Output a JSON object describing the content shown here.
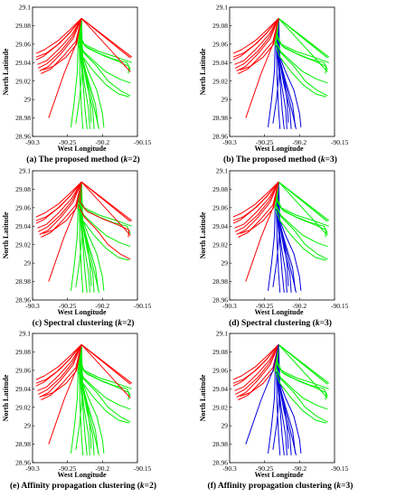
{
  "colors": {
    "red": "#ff0000",
    "green": "#00ee00",
    "blue": "#0000dd"
  },
  "chart_data": [
    {
      "type": "line",
      "caption": "(a) The proposed method (k=2)",
      "caption_parts": [
        "(a) The proposed method (",
        "k",
        "=2)"
      ],
      "xlabel": "West Longitude",
      "ylabel": "North Latitude",
      "xlim": [
        -90.3,
        -90.15
      ],
      "ylim": [
        28.96,
        29.1
      ],
      "xticks": [
        "-90.3",
        "-90.25",
        "-90.2",
        "-90.15"
      ],
      "yticks": [
        "28.96",
        "28.98",
        "29",
        "29.02",
        "29.04",
        "29.06",
        "29.08",
        "29.1"
      ],
      "clusters": {
        "west": "red",
        "east": "green",
        "south": "green",
        "diagonal": "red",
        "sw": "red"
      }
    },
    {
      "type": "line",
      "caption": "(b) The proposed method (k=3)",
      "caption_parts": [
        "(b) The proposed method (",
        "k",
        "=3)"
      ],
      "xlabel": "West Longitude",
      "ylabel": "North Latitude",
      "xlim": [
        -90.3,
        -90.15
      ],
      "ylim": [
        28.96,
        29.1
      ],
      "xticks": [
        "-90.3",
        "-90.25",
        "-90.2",
        "-90.15"
      ],
      "yticks": [
        "28.96",
        "28.98",
        "29",
        "29.02",
        "29.04",
        "29.06",
        "29.08",
        "29.1"
      ],
      "clusters": {
        "west": "red",
        "east": "green",
        "south": "blue",
        "diagonal": "green",
        "sw": "red"
      }
    },
    {
      "type": "line",
      "caption": "(c) Spectral clustering (k=2)",
      "caption_parts": [
        "(c) Spectral clustering (",
        "k",
        "=2)"
      ],
      "xlabel": "West Longitude",
      "ylabel": "North Latitude",
      "xlim": [
        -90.3,
        -90.15
      ],
      "ylim": [
        28.96,
        29.1
      ],
      "xticks": [
        "-90.3",
        "-90.25",
        "-90.2",
        "-90.15"
      ],
      "yticks": [
        "28.96",
        "28.98",
        "29",
        "29.02",
        "29.04",
        "29.06",
        "29.08",
        "29.1"
      ],
      "clusters": {
        "west": "red",
        "east": "mixed",
        "south": "green",
        "diagonal": "red",
        "sw": "red"
      }
    },
    {
      "type": "line",
      "caption": "(d) Spectral clustering (k=3)",
      "caption_parts": [
        "(d) Spectral clustering (",
        "k",
        "=3)"
      ],
      "xlabel": "West Longitude",
      "ylabel": "North Latitude",
      "xlim": [
        -90.3,
        -90.15
      ],
      "ylim": [
        28.96,
        29.1
      ],
      "xticks": [
        "-90.3",
        "-90.25",
        "-90.2",
        "-90.15"
      ],
      "yticks": [
        "28.96",
        "28.98",
        "29",
        "29.02",
        "29.04",
        "29.06",
        "29.08",
        "29.1"
      ],
      "clusters": {
        "west": "red",
        "east": "green",
        "south": "blue",
        "diagonal": "green",
        "sw": "red"
      }
    },
    {
      "type": "line",
      "caption": "(e) Affinity propagation clustering (k=2)",
      "caption_parts": [
        "(e) Affinity propagation clustering (",
        "k",
        "=2)"
      ],
      "xlabel": "West Longitude",
      "ylabel": "North Latitude",
      "xlim": [
        -90.3,
        -90.15
      ],
      "ylim": [
        28.96,
        29.1
      ],
      "xticks": [
        "-90.3",
        "-90.25",
        "-90.2",
        "-90.15"
      ],
      "yticks": [
        "28.96",
        "28.98",
        "29",
        "29.02",
        "29.04",
        "29.06",
        "29.08",
        "29.1"
      ],
      "clusters": {
        "west": "red",
        "east": "green",
        "south": "green",
        "diagonal": "red",
        "sw": "red"
      }
    },
    {
      "type": "line",
      "caption": "(f) Affinity propagation clustering (k=3)",
      "caption_parts": [
        "(f) Affinity propagation clustering (",
        "k",
        "=3)"
      ],
      "xlabel": "West Longitude",
      "ylabel": "North Latitude",
      "xlim": [
        -90.3,
        -90.15
      ],
      "ylim": [
        28.96,
        29.1
      ],
      "xticks": [
        "-90.3",
        "-90.25",
        "-90.2",
        "-90.15"
      ],
      "yticks": [
        "28.96",
        "28.98",
        "29",
        "29.02",
        "29.04",
        "29.06",
        "29.08",
        "29.1"
      ],
      "clusters": {
        "west": "red",
        "east": "green",
        "south": "blue",
        "diagonal": "green",
        "sw": "blue"
      }
    }
  ],
  "trajectories": {
    "west": [
      [
        [
          -90.23,
          29.088
        ],
        [
          -90.246,
          29.076
        ],
        [
          -90.263,
          29.064
        ],
        [
          -90.283,
          29.054
        ],
        [
          -90.295,
          29.05
        ]
      ],
      [
        [
          -90.23,
          29.088
        ],
        [
          -90.245,
          29.074
        ],
        [
          -90.261,
          29.061
        ],
        [
          -90.281,
          29.05
        ],
        [
          -90.295,
          29.046
        ]
      ],
      [
        [
          -90.23,
          29.088
        ],
        [
          -90.247,
          29.072
        ],
        [
          -90.266,
          29.058
        ],
        [
          -90.284,
          29.047
        ],
        [
          -90.295,
          29.043
        ]
      ],
      [
        [
          -90.23,
          29.088
        ],
        [
          -90.244,
          29.07
        ],
        [
          -90.262,
          29.055
        ],
        [
          -90.28,
          29.042
        ],
        [
          -90.293,
          29.038
        ]
      ],
      [
        [
          -90.23,
          29.088
        ],
        [
          -90.243,
          29.068
        ],
        [
          -90.26,
          29.052
        ],
        [
          -90.279,
          29.039
        ],
        [
          -90.292,
          29.034
        ]
      ],
      [
        [
          -90.23,
          29.088
        ],
        [
          -90.242,
          29.066
        ],
        [
          -90.259,
          29.05
        ],
        [
          -90.277,
          29.036
        ],
        [
          -90.29,
          29.031
        ]
      ],
      [
        [
          -90.23,
          29.088
        ],
        [
          -90.238,
          29.063
        ],
        [
          -90.256,
          29.047
        ],
        [
          -90.274,
          29.033
        ],
        [
          -90.288,
          29.028
        ]
      ],
      [
        [
          -90.23,
          29.088
        ],
        [
          -90.237,
          29.06
        ],
        [
          -90.252,
          29.046
        ],
        [
          -90.27,
          29.036
        ],
        [
          -90.285,
          29.032
        ]
      ]
    ],
    "sw": [
      [
        [
          -90.23,
          29.088
        ],
        [
          -90.238,
          29.06
        ],
        [
          -90.255,
          29.028
        ],
        [
          -90.277,
          28.98
        ]
      ]
    ],
    "diagonal": [
      [
        [
          -90.23,
          29.088
        ],
        [
          -90.16,
          29.045
        ]
      ],
      [
        [
          -90.23,
          29.088
        ],
        [
          -90.16,
          29.03
        ]
      ],
      [
        [
          -90.23,
          29.088
        ],
        [
          -90.158,
          29.046
        ]
      ]
    ],
    "east": [
      [
        [
          -90.23,
          29.088
        ],
        [
          -90.232,
          29.07
        ],
        [
          -90.226,
          29.06
        ],
        [
          -90.205,
          29.052
        ],
        [
          -90.18,
          29.046
        ],
        [
          -90.158,
          29.04
        ]
      ],
      [
        [
          -90.23,
          29.088
        ],
        [
          -90.233,
          29.068
        ],
        [
          -90.225,
          29.058
        ],
        [
          -90.205,
          29.05
        ],
        [
          -90.185,
          29.044
        ],
        [
          -90.165,
          29.04
        ],
        [
          -90.16,
          29.032
        ]
      ],
      [
        [
          -90.23,
          29.088
        ],
        [
          -90.232,
          29.066
        ],
        [
          -90.222,
          29.056
        ],
        [
          -90.2,
          29.048
        ],
        [
          -90.18,
          29.042
        ],
        [
          -90.162,
          29.036
        ],
        [
          -90.163,
          29.028
        ]
      ],
      [
        [
          -90.23,
          29.088
        ],
        [
          -90.234,
          29.064
        ],
        [
          -90.227,
          29.052
        ],
        [
          -90.21,
          29.04
        ],
        [
          -90.195,
          29.03
        ],
        [
          -90.175,
          29.022
        ],
        [
          -90.16,
          29.018
        ]
      ],
      [
        [
          -90.23,
          29.088
        ],
        [
          -90.234,
          29.062
        ],
        [
          -90.226,
          29.05
        ],
        [
          -90.208,
          29.036
        ],
        [
          -90.192,
          29.02
        ],
        [
          -90.175,
          29.01
        ],
        [
          -90.16,
          29.004
        ]
      ],
      [
        [
          -90.23,
          29.088
        ],
        [
          -90.235,
          29.06
        ],
        [
          -90.228,
          29.046
        ],
        [
          -90.212,
          29.03
        ],
        [
          -90.195,
          29.016
        ],
        [
          -90.177,
          29.006
        ],
        [
          -90.162,
          29.003
        ]
      ]
    ],
    "south": [
      [
        [
          -90.23,
          29.088
        ],
        [
          -90.235,
          29.06
        ],
        [
          -90.236,
          29.03
        ],
        [
          -90.24,
          29.0
        ],
        [
          -90.245,
          28.97
        ]
      ],
      [
        [
          -90.23,
          29.088
        ],
        [
          -90.233,
          29.055
        ],
        [
          -90.232,
          29.02
        ],
        [
          -90.23,
          28.99
        ],
        [
          -90.228,
          28.968
        ]
      ],
      [
        [
          -90.23,
          29.088
        ],
        [
          -90.232,
          29.05
        ],
        [
          -90.228,
          29.02
        ],
        [
          -90.225,
          28.99
        ],
        [
          -90.222,
          28.968
        ]
      ],
      [
        [
          -90.23,
          29.088
        ],
        [
          -90.231,
          29.05
        ],
        [
          -90.226,
          29.018
        ],
        [
          -90.22,
          28.99
        ],
        [
          -90.218,
          28.968
        ]
      ],
      [
        [
          -90.23,
          29.088
        ],
        [
          -90.23,
          29.048
        ],
        [
          -90.222,
          29.015
        ],
        [
          -90.214,
          28.99
        ],
        [
          -90.212,
          28.968
        ]
      ],
      [
        [
          -90.23,
          29.088
        ],
        [
          -90.229,
          29.045
        ],
        [
          -90.22,
          29.02
        ],
        [
          -90.21,
          28.995
        ],
        [
          -90.206,
          28.97
        ]
      ],
      [
        [
          -90.23,
          29.088
        ],
        [
          -90.228,
          29.04
        ],
        [
          -90.218,
          29.01
        ],
        [
          -90.21,
          28.985
        ],
        [
          -90.205,
          28.968
        ]
      ],
      [
        [
          -90.23,
          29.088
        ],
        [
          -90.232,
          29.058
        ],
        [
          -90.229,
          29.03
        ],
        [
          -90.233,
          29.0
        ],
        [
          -90.238,
          28.974
        ]
      ],
      [
        [
          -90.23,
          29.088
        ],
        [
          -90.231,
          29.052
        ],
        [
          -90.224,
          29.03
        ],
        [
          -90.218,
          29.0
        ],
        [
          -90.216,
          28.975
        ]
      ],
      [
        [
          -90.23,
          29.088
        ],
        [
          -90.23,
          29.05
        ],
        [
          -90.22,
          29.03
        ],
        [
          -90.208,
          29.01
        ],
        [
          -90.2,
          28.985
        ],
        [
          -90.198,
          28.97
        ]
      ]
    ]
  }
}
